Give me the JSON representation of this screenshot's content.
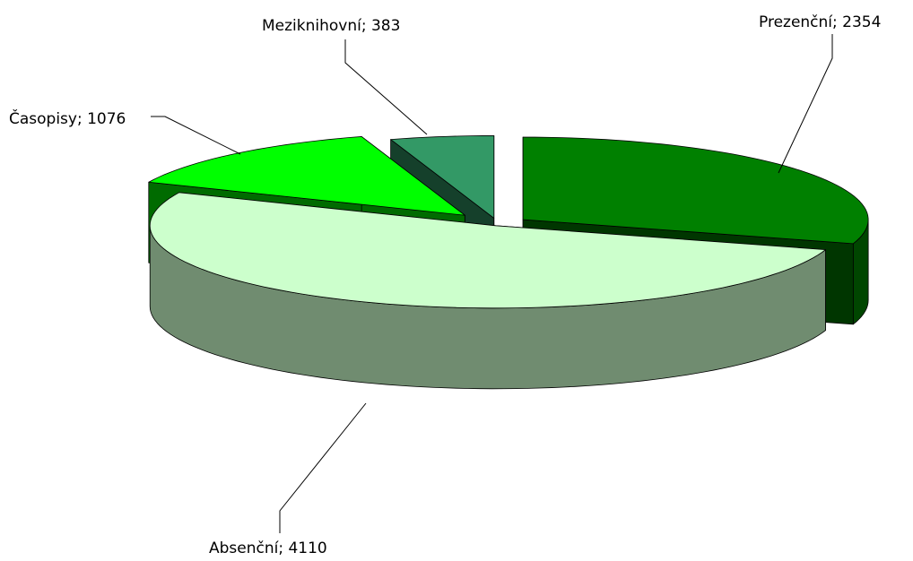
{
  "chart_data": {
    "type": "pie",
    "style": "3d-exploded",
    "title": "",
    "slices": [
      {
        "label": "Prezenční",
        "value": 2354,
        "color": "#008000",
        "text": "Prezenční; 2354"
      },
      {
        "label": "Absenční",
        "value": 4110,
        "color": "#ccffcc",
        "text": "Absenční; 4110"
      },
      {
        "label": "Časopisy",
        "value": 1076,
        "color": "#00ff00",
        "text": "Časopisy; 1076"
      },
      {
        "label": "Meziknihovní",
        "value": 383,
        "color": "#339966",
        "text": "Meziknihovní; 383"
      }
    ],
    "legend": "none",
    "data_labels": "category; value"
  }
}
